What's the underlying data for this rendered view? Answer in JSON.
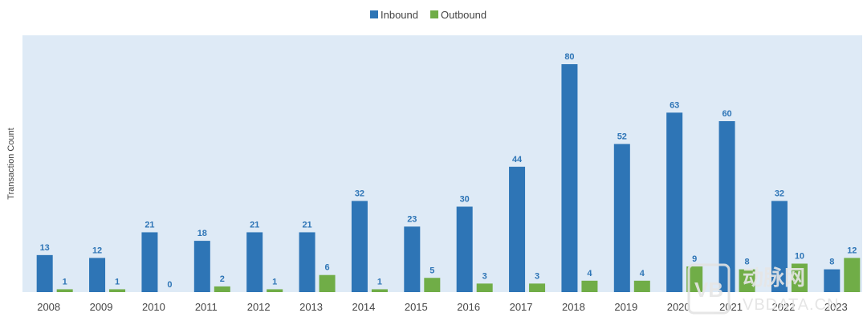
{
  "chart_data": {
    "type": "bar",
    "title": "",
    "xlabel": "",
    "ylabel": "Transaction Count",
    "ylim": [
      0,
      90
    ],
    "grid": false,
    "legend": "top-center",
    "categories": [
      "2008",
      "2009",
      "2010",
      "2011",
      "2012",
      "2013",
      "2014",
      "2015",
      "2016",
      "2017",
      "2018",
      "2019",
      "2020",
      "2021",
      "2022",
      "2023"
    ],
    "series": [
      {
        "name": "Inbound",
        "color": "#2E75B6",
        "values": [
          13,
          12,
          21,
          18,
          21,
          21,
          32,
          23,
          30,
          44,
          80,
          52,
          63,
          60,
          32,
          8
        ]
      },
      {
        "name": "Outbound",
        "color": "#70AD47",
        "values": [
          1,
          1,
          0,
          2,
          1,
          6,
          1,
          5,
          3,
          3,
          4,
          4,
          9,
          8,
          10,
          12
        ]
      }
    ],
    "plot_background": "#DEEAF6",
    "data_label_color": "#2E75B6"
  },
  "watermark": {
    "logo_text": "VB",
    "cn_text": "动脉网",
    "url_text": "VBDATA.CN"
  }
}
